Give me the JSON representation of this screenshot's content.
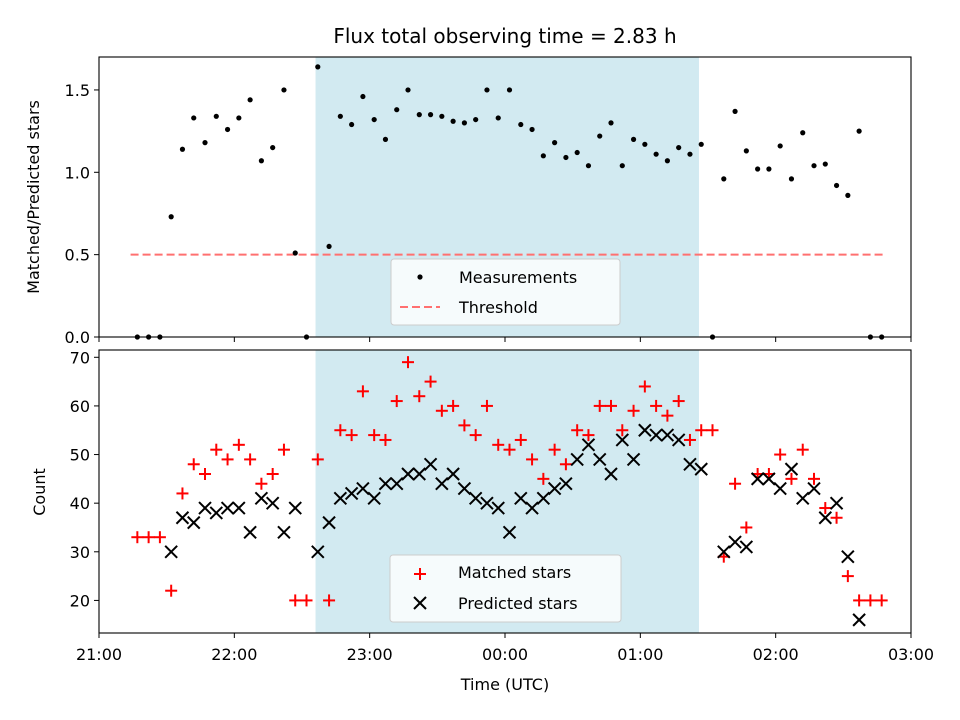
{
  "chart_data": [
    {
      "type": "scatter",
      "title": "Flux total observing time = 2.83 h",
      "xlabel": "",
      "ylabel": "Matched/Predicted stars",
      "xlim": [
        "21:00",
        "03:00"
      ],
      "ylim": [
        0,
        1.7
      ],
      "yticks": [
        "0.0",
        "0.5",
        "1.0",
        "1.5"
      ],
      "xticks": [
        "21:00",
        "22:00",
        "23:00",
        "00:00",
        "01:00",
        "02:00",
        "03:00"
      ],
      "xtick_labels_shown": false,
      "shaded_region": [
        "22:36",
        "01:26"
      ],
      "shade_color": "#add8e6",
      "legend_position": "lower center",
      "series": [
        {
          "name": "Measurements",
          "color": "#000000",
          "marker": "dot",
          "times": [
            "21:17",
            "21:22",
            "21:27",
            "21:32",
            "21:37",
            "21:42",
            "21:47",
            "21:52",
            "21:57",
            "22:02",
            "22:07",
            "22:12",
            "22:17",
            "22:22",
            "22:27",
            "22:32",
            "22:37",
            "22:42",
            "22:47",
            "22:52",
            "22:57",
            "23:02",
            "23:07",
            "23:12",
            "23:17",
            "23:22",
            "23:27",
            "23:32",
            "23:37",
            "23:42",
            "23:47",
            "23:52",
            "23:57",
            "00:02",
            "00:07",
            "00:12",
            "00:17",
            "00:22",
            "00:27",
            "00:32",
            "00:37",
            "00:42",
            "00:47",
            "00:52",
            "00:57",
            "01:02",
            "01:07",
            "01:12",
            "01:17",
            "01:22",
            "01:27",
            "01:32",
            "01:37",
            "01:42",
            "01:47",
            "01:52",
            "01:57",
            "02:02",
            "02:07",
            "02:12",
            "02:17",
            "02:22",
            "02:27",
            "02:32",
            "02:37",
            "02:42",
            "02:47"
          ],
          "values": [
            0,
            0,
            0,
            0.73,
            1.14,
            1.33,
            1.18,
            1.34,
            1.26,
            1.33,
            1.44,
            1.07,
            1.15,
            1.5,
            0.51,
            0,
            1.64,
            0.55,
            1.34,
            1.29,
            1.46,
            1.32,
            1.2,
            1.38,
            1.5,
            1.35,
            1.35,
            1.34,
            1.31,
            1.3,
            1.32,
            1.5,
            1.33,
            1.5,
            1.29,
            1.26,
            1.1,
            1.18,
            1.09,
            1.12,
            1.04,
            1.22,
            1.3,
            1.04,
            1.2,
            1.17,
            1.11,
            1.07,
            1.15,
            1.11,
            1.17,
            0,
            0.96,
            1.37,
            1.13,
            1.02,
            1.02,
            1.16,
            0.96,
            1.24,
            1.04,
            1.05,
            0.92,
            0.86,
            1.25,
            0,
            0
          ]
        },
        {
          "name": "Threshold",
          "color": "#ff7070",
          "style": "dashed",
          "times": [
            "21:14",
            "02:49"
          ],
          "values": [
            0.5,
            0.5
          ]
        }
      ]
    },
    {
      "type": "scatter",
      "title": "",
      "xlabel": "Time (UTC)",
      "ylabel": "Count",
      "xlim": [
        "21:00",
        "03:00"
      ],
      "ylim": [
        13.3,
        71.5
      ],
      "yticks": [
        "20",
        "30",
        "40",
        "50",
        "60",
        "70"
      ],
      "xticks": [
        "21:00",
        "22:00",
        "23:00",
        "00:00",
        "01:00",
        "02:00",
        "03:00"
      ],
      "shaded_region": [
        "22:36",
        "01:26"
      ],
      "shade_color": "#add8e6",
      "legend_position": "lower center",
      "series": [
        {
          "name": "Matched stars",
          "color": "#ff0000",
          "marker": "plus",
          "times": [
            "21:17",
            "21:22",
            "21:27",
            "21:32",
            "21:37",
            "21:42",
            "21:47",
            "21:52",
            "21:57",
            "22:02",
            "22:07",
            "22:12",
            "22:17",
            "22:22",
            "22:27",
            "22:32",
            "22:37",
            "22:42",
            "22:47",
            "22:52",
            "22:57",
            "23:02",
            "23:07",
            "23:12",
            "23:17",
            "23:22",
            "23:27",
            "23:32",
            "23:37",
            "23:42",
            "23:47",
            "23:52",
            "23:57",
            "00:02",
            "00:07",
            "00:12",
            "00:17",
            "00:22",
            "00:27",
            "00:32",
            "00:37",
            "00:42",
            "00:47",
            "00:52",
            "00:57",
            "01:02",
            "01:07",
            "01:12",
            "01:17",
            "01:22",
            "01:27",
            "01:32",
            "01:37",
            "01:42",
            "01:47",
            "01:52",
            "01:57",
            "02:02",
            "02:07",
            "02:12",
            "02:17",
            "02:22",
            "02:27",
            "02:32",
            "02:37",
            "02:42",
            "02:47"
          ],
          "values": [
            33,
            33,
            33,
            22,
            42,
            48,
            46,
            51,
            49,
            52,
            49,
            44,
            46,
            51,
            20,
            20,
            49,
            20,
            55,
            54,
            63,
            54,
            53,
            61,
            69,
            62,
            65,
            59,
            60,
            56,
            54,
            60,
            52,
            51,
            53,
            49,
            45,
            51,
            48,
            55,
            54,
            60,
            60,
            55,
            59,
            64,
            60,
            58,
            61,
            53,
            55,
            55,
            29,
            44,
            35,
            46,
            46,
            50,
            45,
            51,
            45,
            39,
            37,
            25,
            20,
            20,
            20
          ]
        },
        {
          "name": "Predicted stars",
          "color": "#000000",
          "marker": "x",
          "times": [
            "21:32",
            "21:37",
            "21:42",
            "21:47",
            "21:52",
            "21:57",
            "22:02",
            "22:07",
            "22:12",
            "22:17",
            "22:22",
            "22:27",
            "22:37",
            "22:42",
            "22:47",
            "22:52",
            "22:57",
            "23:02",
            "23:07",
            "23:12",
            "23:17",
            "23:22",
            "23:27",
            "23:32",
            "23:37",
            "23:42",
            "23:47",
            "23:52",
            "23:57",
            "00:02",
            "00:07",
            "00:12",
            "00:17",
            "00:22",
            "00:27",
            "00:32",
            "00:37",
            "00:42",
            "00:47",
            "00:52",
            "00:57",
            "01:02",
            "01:07",
            "01:12",
            "01:17",
            "01:22",
            "01:27",
            "01:37",
            "01:42",
            "01:47",
            "01:52",
            "01:57",
            "02:02",
            "02:07",
            "02:12",
            "02:17",
            "02:22",
            "02:27",
            "02:32",
            "02:37"
          ],
          "values": [
            30,
            37,
            36,
            39,
            38,
            39,
            39,
            34,
            41,
            40,
            34,
            39,
            30,
            36,
            41,
            42,
            43,
            41,
            44,
            44,
            46,
            46,
            48,
            44,
            46,
            43,
            41,
            40,
            39,
            34,
            41,
            39,
            41,
            43,
            44,
            49,
            52,
            49,
            46,
            53,
            49,
            55,
            54,
            54,
            53,
            48,
            47,
            30,
            32,
            31,
            45,
            45,
            43,
            47,
            41,
            43,
            37,
            40,
            29,
            16
          ]
        }
      ]
    }
  ]
}
